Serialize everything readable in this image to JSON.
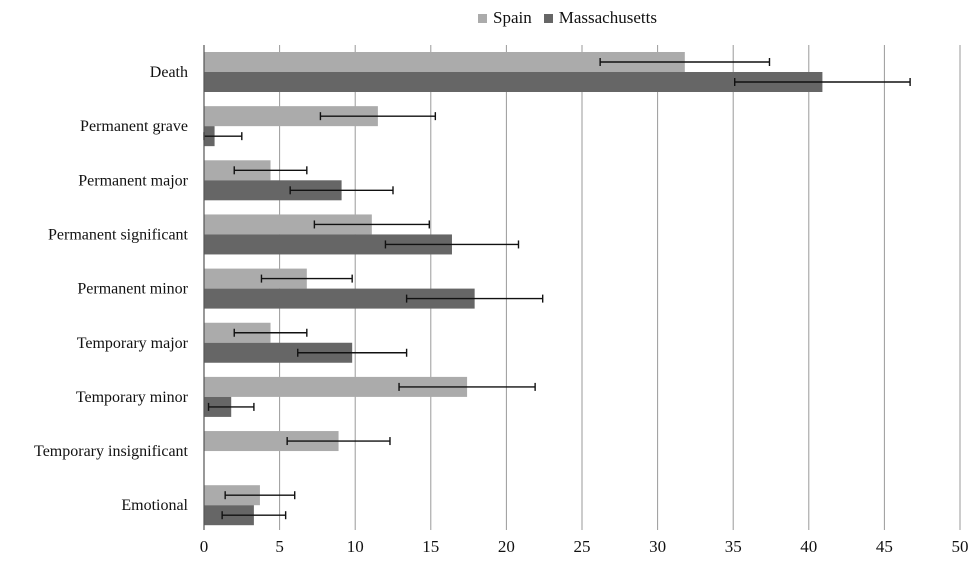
{
  "chart_data": {
    "type": "bar",
    "orientation": "horizontal",
    "categories": [
      "Death",
      "Permanent grave",
      "Permanent major",
      "Permanent significant",
      "Permanent minor",
      "Temporary major",
      "Temporary minor",
      "Temporary insignificant",
      "Emotional"
    ],
    "series": [
      {
        "name": "Spain",
        "color": "#ababab",
        "values": [
          31.8,
          11.5,
          4.4,
          11.1,
          6.8,
          4.4,
          17.4,
          8.9,
          3.7
        ],
        "error": [
          5.6,
          3.8,
          2.4,
          3.8,
          3.0,
          2.4,
          4.5,
          3.4,
          2.3
        ]
      },
      {
        "name": "Massachusetts",
        "color": "#666666",
        "values": [
          40.9,
          0.7,
          9.1,
          16.4,
          17.9,
          9.8,
          1.8,
          0,
          3.3
        ],
        "error": [
          5.8,
          1.8,
          3.4,
          4.4,
          4.5,
          3.6,
          1.5,
          0,
          2.1
        ]
      }
    ],
    "xlim": [
      0,
      50
    ],
    "xticks": [
      "0",
      "5",
      "10",
      "15",
      "20",
      "25",
      "30",
      "35",
      "40",
      "45",
      "50"
    ],
    "grid": "vertical",
    "legend_position": "top",
    "title": "",
    "xlabel": "",
    "ylabel": ""
  }
}
